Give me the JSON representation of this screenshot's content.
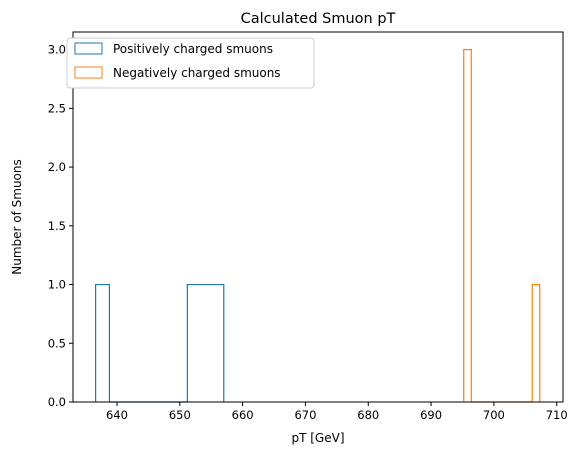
{
  "chart_data": {
    "type": "histogram",
    "title": "Calculated Smuon pT",
    "xlabel": "pT [GeV]",
    "ylabel": "Number of Smuons",
    "xlim": [
      633.0,
      711.0
    ],
    "ylim": [
      0,
      3.15
    ],
    "xticks": [
      640,
      650,
      660,
      670,
      680,
      690,
      700,
      710
    ],
    "yticks": [
      0.0,
      0.5,
      1.0,
      1.5,
      2.0,
      2.5,
      3.0
    ],
    "xtick_labels": [
      "640",
      "650",
      "660",
      "670",
      "680",
      "690",
      "700",
      "710"
    ],
    "ytick_labels": [
      "0.0",
      "0.5",
      "1.0",
      "1.5",
      "2.0",
      "2.5",
      "3.0"
    ],
    "legend_position": "top-left",
    "grid": false,
    "series": [
      {
        "name": "Positively charged smuons",
        "color": "#1f77b4",
        "bins": [
          {
            "x0": 636.6,
            "x1": 638.8,
            "count": 1
          },
          {
            "x0": 638.8,
            "x1": 651.2,
            "count": 0
          },
          {
            "x0": 651.2,
            "x1": 657.0,
            "count": 1
          }
        ]
      },
      {
        "name": "Negatively charged smuons",
        "color": "#ff7f0e",
        "bins": [
          {
            "x0": 695.2,
            "x1": 696.4,
            "count": 3
          },
          {
            "x0": 696.4,
            "x1": 706.1,
            "count": 0
          },
          {
            "x0": 706.1,
            "x1": 707.3,
            "count": 1
          }
        ]
      }
    ]
  }
}
